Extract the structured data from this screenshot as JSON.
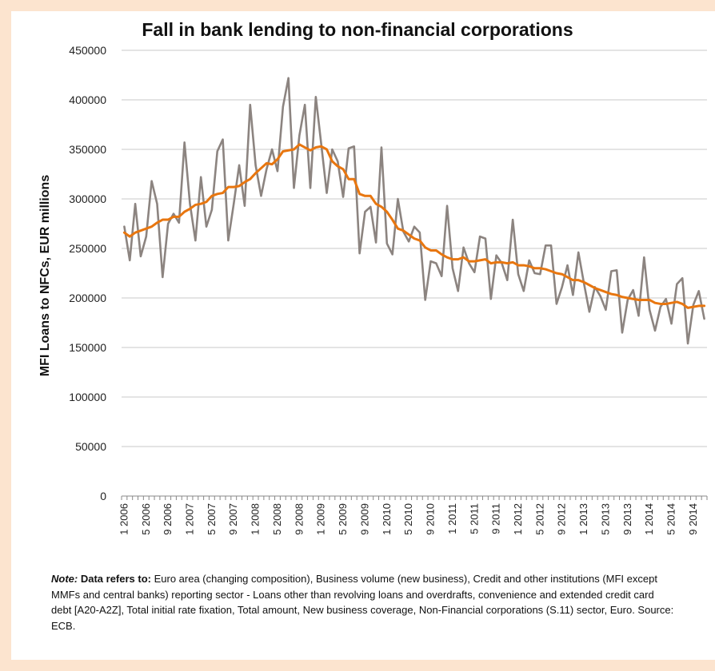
{
  "chart_data": {
    "type": "line",
    "title": "Fall in bank lending to non-financial corporations",
    "xlabel": "",
    "ylabel": "MFI  Loans to NFCs, EUR millions",
    "ylim": [
      0,
      450000
    ],
    "yticks": [
      "0",
      "50000",
      "100000",
      "150000",
      "200000",
      "250000",
      "300000",
      "350000",
      "400000",
      "450000"
    ],
    "grid": true,
    "legend": "none",
    "x_tick_labels": [
      "1 2006",
      "5 2006",
      "9 2006",
      "1 2007",
      "5 2007",
      "9 2007",
      "1 2008",
      "5 2008",
      "9 2008",
      "1 2009",
      "5 2009",
      "9 2009",
      "1 2010",
      "5 2010",
      "9 2010",
      "1 2011",
      "5 2011",
      "9 2011",
      "1 2012",
      "5 2012",
      "9 2012",
      "1 2013",
      "5 2013",
      "9 2013",
      "1 2014",
      "5 2014",
      "9 2014"
    ],
    "colors": {
      "monthly": "#8c8480",
      "trend": "#e8760f"
    },
    "x_start": "2006-01",
    "series": [
      {
        "values": [
          272000,
          238000,
          295000,
          242000,
          262000,
          318000,
          295000,
          221000,
          275000,
          285000,
          276000,
          357000,
          295000,
          258000,
          322000,
          272000,
          289000,
          348000,
          360000,
          258000,
          295000,
          334000,
          293000,
          395000,
          334000,
          303000,
          330000,
          350000,
          328000,
          393000,
          422000,
          311000,
          364000,
          395000,
          311000,
          403000,
          355000,
          306000,
          350000,
          338000,
          302000,
          351000,
          353000,
          245000,
          287000,
          292000,
          256000,
          352000,
          255000,
          244000,
          300000,
          267000,
          257000,
          272000,
          266000,
          198000,
          237000,
          235000,
          222000,
          293000,
          230000,
          207000,
          251000,
          235000,
          226000,
          262000,
          260000,
          199000,
          243000,
          235000,
          218000,
          279000,
          224000,
          207000,
          238000,
          225000,
          224000,
          253000,
          253000,
          194000,
          211000,
          233000,
          203000,
          246000,
          215000,
          186000,
          211000,
          202000,
          188000,
          227000,
          228000,
          165000,
          198000,
          208000,
          182000,
          241000,
          188000,
          167000,
          191000,
          199000,
          174000,
          214000,
          220000,
          154000,
          193000,
          207000,
          179000
        ]
      },
      {
        "values": [
          266000,
          262000,
          266000,
          268000,
          270000,
          272000,
          276000,
          279000,
          279000,
          282000,
          282000,
          287000,
          290000,
          294000,
          295000,
          297000,
          303000,
          305000,
          306000,
          312000,
          312000,
          313000,
          317000,
          320000,
          326000,
          331000,
          336000,
          335000,
          340000,
          348000,
          349000,
          350000,
          355000,
          352000,
          349000,
          352000,
          353000,
          350000,
          338000,
          333000,
          330000,
          320000,
          320000,
          305000,
          303000,
          303000,
          295000,
          292000,
          287000,
          279000,
          270000,
          268000,
          264000,
          260000,
          258000,
          251000,
          248000,
          248000,
          244000,
          241000,
          239000,
          239000,
          241000,
          237000,
          237000,
          238000,
          239000,
          235000,
          236000,
          236000,
          235000,
          236000,
          233000,
          233000,
          232000,
          230000,
          230000,
          229000,
          227000,
          225000,
          224000,
          221000,
          218000,
          218000,
          216000,
          213000,
          210000,
          208000,
          206000,
          204000,
          203000,
          201000,
          200000,
          199000,
          198000,
          198000,
          198000,
          195000,
          194000,
          194000,
          195000,
          196000,
          194000,
          190000,
          191000,
          192000,
          192000
        ]
      }
    ]
  },
  "note": {
    "label": "Note:",
    "lead": "Data refers to:",
    "text": "Euro area (changing composition), Business volume (new business), Credit and other institutions (MFI except MMFs and central banks) reporting sector - Loans other than revolving loans and overdrafts, convenience and extended credit card debt [A20-A2Z], Total initial rate fixation, Total amount, New business coverage, Non-Financial corporations (S.11) sector, Euro. Source: ECB."
  }
}
